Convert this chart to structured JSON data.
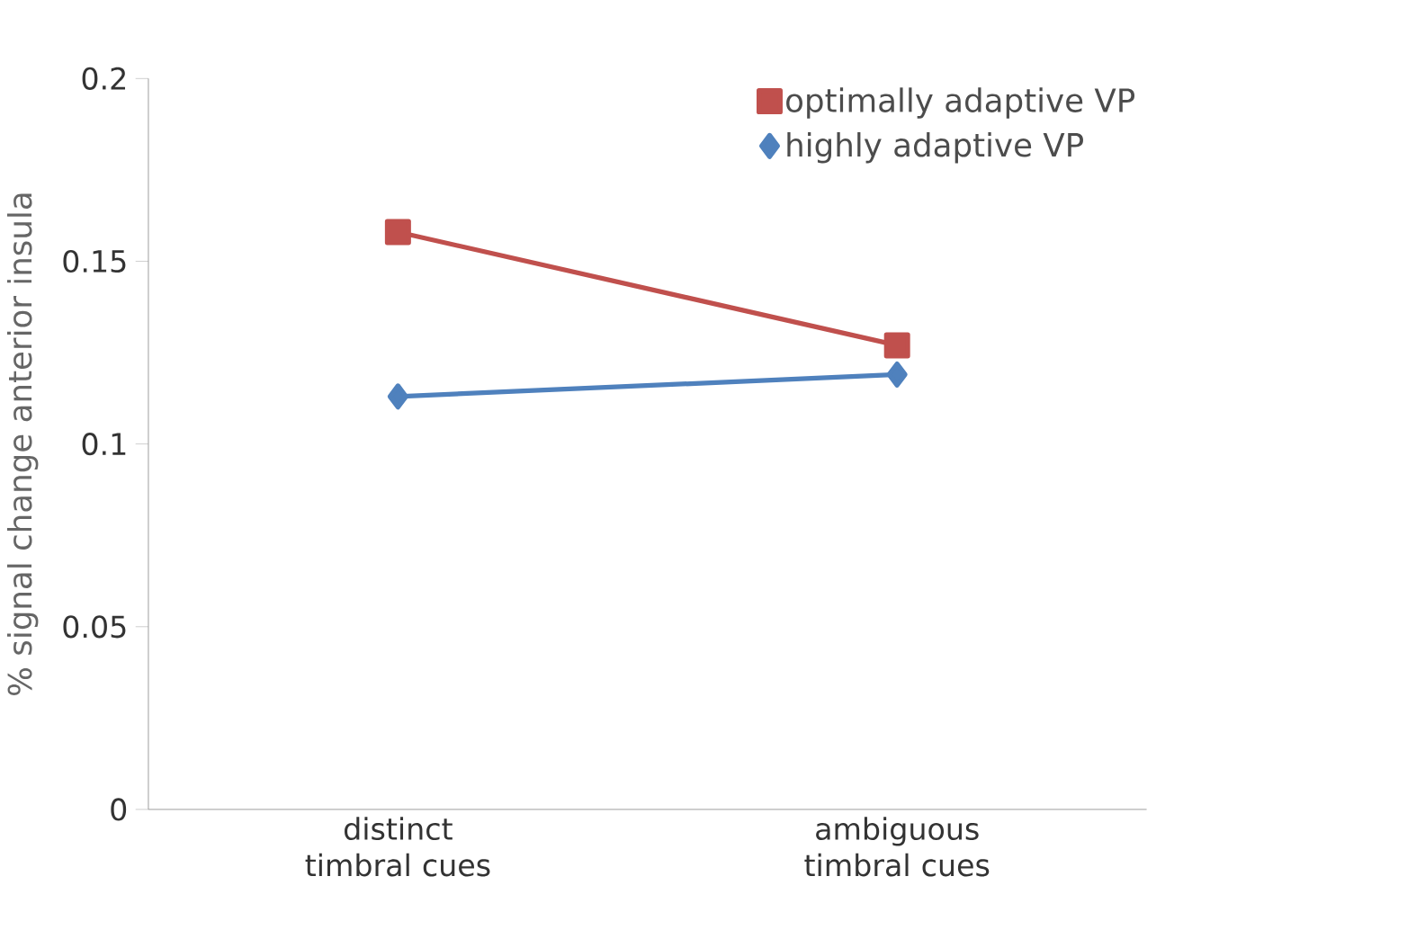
{
  "chart_data": {
    "type": "line",
    "ylabel": "% signal change anterior insula",
    "categories": [
      "distinct timbral cues",
      "ambiguous timbral cues"
    ],
    "series": [
      {
        "name": "optimally adaptive VP",
        "color": "#c0504d",
        "marker": "square",
        "values": [
          0.158,
          0.127
        ]
      },
      {
        "name": "highly adaptive VP",
        "color": "#4f81bd",
        "marker": "diamond",
        "values": [
          0.113,
          0.119
        ]
      }
    ],
    "ylim": [
      0,
      0.2
    ],
    "yticks": [
      0,
      0.05,
      0.1,
      0.15,
      0.2
    ],
    "legend": "top right",
    "grid": false
  }
}
